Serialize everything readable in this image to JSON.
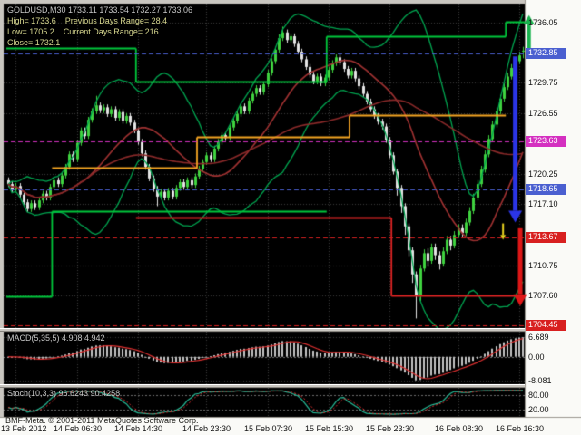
{
  "title": {
    "symbol_ohlc": "GOLDUSD,M30 1733.11 1733.54 1732.27 1733.06"
  },
  "info_lines": {
    "line1": "High= 1733.6    Previous Days Range= 28.4",
    "line2": "Low= 1705.2    Current Days Range= 216",
    "line3": "Close= 1732.1"
  },
  "footer": {
    "copyright": "BMF-Meta. © 2001-2011 MetaQuotes Software Corp."
  },
  "panels": {
    "macd": {
      "label": "MACD(5,35,5) 4.908 4.942",
      "axis": [
        {
          "label": "6.689",
          "value": 6.689
        },
        {
          "label": "0.00",
          "value": 0
        },
        {
          "label": "-8.081",
          "value": -8.081
        }
      ]
    },
    "stoch": {
      "label": "Stoch(10,3,3) 96.6243 90.4258",
      "axis": [
        {
          "label": "80.00",
          "value": 80
        },
        {
          "label": "20.00",
          "value": 20
        }
      ]
    }
  },
  "price_axis": {
    "plain": [
      {
        "label": "1736.05",
        "value": 1736.05
      },
      {
        "label": "1729.75",
        "value": 1729.75
      },
      {
        "label": "1726.55",
        "value": 1726.55
      },
      {
        "label": "1720.25",
        "value": 1720.25
      },
      {
        "label": "1717.10",
        "value": 1717.1
      },
      {
        "label": "1710.75",
        "value": 1710.75
      },
      {
        "label": "1707.60",
        "value": 1707.6
      }
    ],
    "markers": [
      {
        "label": "1732.85",
        "value": 1732.85,
        "color": "#4A5FD0"
      },
      {
        "label": "1723.63",
        "value": 1723.63,
        "color": "#D430C0"
      },
      {
        "label": "1718.65",
        "value": 1718.65,
        "color": "#4A5FD0"
      },
      {
        "label": "1713.67",
        "value": 1713.67,
        "color": "#D82020"
      },
      {
        "label": "1704.45",
        "value": 1704.45,
        "color": "#D82020"
      }
    ]
  },
  "time_axis": {
    "labels": [
      {
        "label": "13 Feb 2012",
        "bar": 2
      },
      {
        "label": "14 Feb 06:30",
        "bar": 18
      },
      {
        "label": "14 Feb 14:30",
        "bar": 34
      },
      {
        "label": "14 Feb 23:30",
        "bar": 52
      },
      {
        "label": "15 Feb 07:30",
        "bar": 68
      },
      {
        "label": "15 Feb 15:30",
        "bar": 84
      },
      {
        "label": "15 Feb 23:30",
        "bar": 100
      },
      {
        "label": "16 Feb 08:30",
        "bar": 118
      },
      {
        "label": "16 Feb 16:30",
        "bar": 134
      }
    ]
  },
  "chart_data": {
    "type": "candlestick",
    "symbol": "GOLDUSD",
    "timeframe": "M30",
    "current_bar": {
      "open": 1733.11,
      "high": 1733.54,
      "low": 1732.27,
      "close": 1733.06
    },
    "session_stats": {
      "high": 1733.6,
      "low": 1705.2,
      "close": 1732.1,
      "previous_days_range": 28.4,
      "current_days_range": 216
    },
    "price_range": [
      1704.2,
      1738.0
    ],
    "candles": [
      [
        1719.6,
        1719.9,
        1718.9,
        1719.2
      ],
      [
        1719.2,
        1719.5,
        1718.3,
        1718.6
      ],
      [
        1718.6,
        1719.3,
        1718.3,
        1719.0
      ],
      [
        1719.0,
        1719.3,
        1717.8,
        1718.1
      ],
      [
        1718.1,
        1718.4,
        1717.0,
        1717.3
      ],
      [
        1717.3,
        1717.6,
        1716.3,
        1716.6
      ],
      [
        1716.6,
        1717.5,
        1716.3,
        1717.2
      ],
      [
        1717.2,
        1717.5,
        1716.5,
        1716.8
      ],
      [
        1716.8,
        1717.8,
        1716.5,
        1717.5
      ],
      [
        1717.5,
        1718.5,
        1717.2,
        1718.2
      ],
      [
        1718.2,
        1718.5,
        1717.5,
        1717.8
      ],
      [
        1717.8,
        1719.2,
        1717.5,
        1718.9
      ],
      [
        1718.9,
        1719.9,
        1718.6,
        1719.6
      ],
      [
        1719.6,
        1719.9,
        1718.9,
        1719.2
      ],
      [
        1719.2,
        1720.4,
        1718.9,
        1720.1
      ],
      [
        1720.1,
        1721.3,
        1719.8,
        1721.0
      ],
      [
        1721.0,
        1722.6,
        1720.7,
        1722.3
      ],
      [
        1722.3,
        1722.6,
        1721.5,
        1721.8
      ],
      [
        1721.8,
        1723.8,
        1721.5,
        1723.5
      ],
      [
        1723.5,
        1725.1,
        1723.2,
        1724.8
      ],
      [
        1724.8,
        1725.1,
        1723.9,
        1724.2
      ],
      [
        1724.2,
        1726.2,
        1723.9,
        1725.9
      ],
      [
        1725.9,
        1727.1,
        1725.6,
        1726.8
      ],
      [
        1726.8,
        1728.4,
        1726.5,
        1727.4
      ],
      [
        1727.4,
        1727.7,
        1726.6,
        1726.9
      ],
      [
        1726.9,
        1727.5,
        1726.6,
        1727.2
      ],
      [
        1727.2,
        1727.5,
        1726.2,
        1726.5
      ],
      [
        1726.5,
        1727.3,
        1726.2,
        1727.0
      ],
      [
        1727.0,
        1727.3,
        1725.8,
        1726.1
      ],
      [
        1726.1,
        1727.0,
        1725.8,
        1726.7
      ],
      [
        1726.7,
        1727.0,
        1725.5,
        1725.8
      ],
      [
        1725.8,
        1726.6,
        1725.5,
        1726.3
      ],
      [
        1726.3,
        1726.6,
        1725.3,
        1725.6
      ],
      [
        1725.6,
        1725.9,
        1724.5,
        1724.8
      ],
      [
        1724.8,
        1725.1,
        1723.3,
        1723.6
      ],
      [
        1723.6,
        1723.9,
        1722.1,
        1722.4
      ],
      [
        1722.4,
        1722.7,
        1720.7,
        1721.0
      ],
      [
        1721.0,
        1721.3,
        1719.5,
        1719.8
      ],
      [
        1719.8,
        1720.1,
        1718.4,
        1718.7
      ],
      [
        1718.7,
        1719.0,
        1716.9,
        1717.9
      ],
      [
        1717.9,
        1718.7,
        1717.6,
        1718.4
      ],
      [
        1718.4,
        1718.7,
        1717.5,
        1717.8
      ],
      [
        1717.8,
        1718.8,
        1717.5,
        1718.5
      ],
      [
        1718.5,
        1718.8,
        1717.6,
        1717.9
      ],
      [
        1717.9,
        1719.1,
        1717.6,
        1718.8
      ],
      [
        1718.8,
        1719.7,
        1718.5,
        1719.4
      ],
      [
        1719.4,
        1719.7,
        1718.6,
        1718.9
      ],
      [
        1718.9,
        1719.9,
        1718.6,
        1719.6
      ],
      [
        1719.6,
        1719.9,
        1718.8,
        1719.1
      ],
      [
        1719.1,
        1720.3,
        1718.8,
        1720.0
      ],
      [
        1720.0,
        1721.1,
        1719.7,
        1720.8
      ],
      [
        1720.8,
        1721.8,
        1720.5,
        1721.5
      ],
      [
        1721.5,
        1722.5,
        1721.2,
        1722.2
      ],
      [
        1722.2,
        1722.5,
        1721.5,
        1721.8
      ],
      [
        1721.8,
        1723.2,
        1721.5,
        1722.9
      ],
      [
        1722.9,
        1723.9,
        1722.6,
        1723.6
      ],
      [
        1723.6,
        1724.6,
        1723.3,
        1724.3
      ],
      [
        1724.3,
        1724.6,
        1723.7,
        1724.0
      ],
      [
        1724.0,
        1725.4,
        1723.7,
        1725.1
      ],
      [
        1725.1,
        1726.1,
        1724.8,
        1725.8
      ],
      [
        1725.8,
        1726.8,
        1725.5,
        1726.5
      ],
      [
        1726.5,
        1727.6,
        1726.2,
        1727.3
      ],
      [
        1727.3,
        1727.6,
        1726.5,
        1726.8
      ],
      [
        1726.8,
        1728.2,
        1726.5,
        1727.9
      ],
      [
        1727.9,
        1728.9,
        1727.6,
        1728.6
      ],
      [
        1728.6,
        1729.5,
        1728.3,
        1729.2
      ],
      [
        1729.2,
        1729.5,
        1728.5,
        1728.8
      ],
      [
        1728.8,
        1729.9,
        1728.5,
        1729.6
      ],
      [
        1729.6,
        1731.1,
        1729.3,
        1730.8
      ],
      [
        1730.8,
        1732.3,
        1730.5,
        1732.0
      ],
      [
        1732.0,
        1733.5,
        1731.7,
        1733.2
      ],
      [
        1733.2,
        1734.8,
        1732.9,
        1734.4
      ],
      [
        1734.4,
        1735.6,
        1734.1,
        1735.0
      ],
      [
        1735.0,
        1735.3,
        1733.9,
        1734.2
      ],
      [
        1734.2,
        1734.9,
        1733.9,
        1734.6
      ],
      [
        1734.6,
        1734.9,
        1733.5,
        1733.8
      ],
      [
        1733.8,
        1734.1,
        1732.7,
        1733.0
      ],
      [
        1733.0,
        1733.3,
        1731.9,
        1732.2
      ],
      [
        1732.2,
        1732.5,
        1731.1,
        1731.4
      ],
      [
        1731.4,
        1731.7,
        1730.3,
        1730.6
      ],
      [
        1730.6,
        1730.9,
        1729.6,
        1729.9
      ],
      [
        1729.9,
        1730.7,
        1729.6,
        1730.4
      ],
      [
        1730.4,
        1730.7,
        1729.4,
        1729.7
      ],
      [
        1729.7,
        1730.6,
        1729.4,
        1730.3
      ],
      [
        1730.3,
        1731.4,
        1730.0,
        1731.1
      ],
      [
        1731.1,
        1732.1,
        1730.8,
        1731.8
      ],
      [
        1731.8,
        1732.7,
        1731.5,
        1732.4
      ],
      [
        1732.4,
        1732.7,
        1731.6,
        1731.9
      ],
      [
        1731.9,
        1732.2,
        1730.9,
        1731.2
      ],
      [
        1731.2,
        1731.5,
        1730.2,
        1730.5
      ],
      [
        1730.5,
        1731.3,
        1730.2,
        1731.0
      ],
      [
        1731.0,
        1731.3,
        1729.9,
        1730.2
      ],
      [
        1730.2,
        1730.5,
        1729.1,
        1729.4
      ],
      [
        1729.4,
        1729.7,
        1728.3,
        1728.6
      ],
      [
        1728.6,
        1728.9,
        1727.5,
        1727.8
      ],
      [
        1727.8,
        1728.1,
        1726.7,
        1727.0
      ],
      [
        1727.0,
        1727.3,
        1726.0,
        1726.3
      ],
      [
        1726.3,
        1726.6,
        1725.4,
        1725.7
      ],
      [
        1725.7,
        1726.0,
        1724.9,
        1725.2
      ],
      [
        1725.2,
        1725.5,
        1723.5,
        1723.8
      ],
      [
        1723.8,
        1724.1,
        1721.9,
        1722.2
      ],
      [
        1722.2,
        1722.5,
        1720.2,
        1720.5
      ],
      [
        1720.5,
        1720.8,
        1718.0,
        1718.8
      ],
      [
        1718.8,
        1719.1,
        1716.2,
        1716.9
      ],
      [
        1716.9,
        1717.2,
        1713.9,
        1714.8
      ],
      [
        1714.8,
        1715.1,
        1711.6,
        1712.3
      ],
      [
        1712.3,
        1712.6,
        1708.9,
        1709.8
      ],
      [
        1709.8,
        1710.1,
        1705.2,
        1707.6
      ],
      [
        1707.6,
        1710.8,
        1707.0,
        1710.4
      ],
      [
        1710.4,
        1712.4,
        1710.1,
        1712.0
      ],
      [
        1712.0,
        1712.5,
        1710.6,
        1711.2
      ],
      [
        1711.2,
        1713.0,
        1710.9,
        1712.6
      ],
      [
        1712.6,
        1713.0,
        1711.3,
        1711.8
      ],
      [
        1711.8,
        1712.2,
        1710.3,
        1710.9
      ],
      [
        1710.9,
        1712.6,
        1710.6,
        1712.2
      ],
      [
        1712.2,
        1713.8,
        1711.9,
        1713.4
      ],
      [
        1713.4,
        1713.8,
        1712.3,
        1712.8
      ],
      [
        1712.8,
        1714.3,
        1712.5,
        1713.9
      ],
      [
        1713.9,
        1715.0,
        1713.6,
        1714.6
      ],
      [
        1714.6,
        1715.0,
        1713.7,
        1714.1
      ],
      [
        1714.1,
        1715.6,
        1713.8,
        1715.2
      ],
      [
        1715.2,
        1716.8,
        1714.9,
        1716.4
      ],
      [
        1716.4,
        1718.2,
        1716.1,
        1717.8
      ],
      [
        1717.8,
        1719.6,
        1717.5,
        1719.2
      ],
      [
        1719.2,
        1721.1,
        1718.9,
        1720.7
      ],
      [
        1720.7,
        1722.7,
        1720.4,
        1722.3
      ],
      [
        1722.3,
        1724.3,
        1722.0,
        1723.9
      ],
      [
        1723.9,
        1725.8,
        1723.6,
        1725.4
      ],
      [
        1725.4,
        1727.2,
        1725.1,
        1726.8
      ],
      [
        1726.8,
        1728.5,
        1726.5,
        1728.1
      ],
      [
        1728.1,
        1729.7,
        1727.8,
        1729.3
      ],
      [
        1729.3,
        1730.8,
        1729.0,
        1730.4
      ],
      [
        1730.4,
        1731.7,
        1730.1,
        1731.3
      ],
      [
        1731.3,
        1732.4,
        1731.0,
        1732.0
      ],
      [
        1732.0,
        1733.0,
        1731.7,
        1732.6
      ],
      [
        1733.1,
        1733.5,
        1732.3,
        1733.1
      ]
    ],
    "overlays": {
      "bollinger": {
        "period": 20,
        "deviation": 2,
        "color": "#00A550"
      },
      "moving_averages": [
        {
          "period": 21,
          "color": "#A13232"
        },
        {
          "period": 55,
          "color": "#8B2A2A"
        }
      ],
      "step_lines": [
        {
          "name": "upper-green-level",
          "color": "#00C83C",
          "segments": [
            [
              0,
              34,
              1733.4
            ],
            [
              34,
              84,
              1729.9
            ],
            [
              84,
              131,
              1734.6
            ],
            [
              131,
              136,
              1736.1
            ]
          ]
        },
        {
          "name": "lower-green-level",
          "color": "#00C83C",
          "segments": [
            [
              0,
              12,
              1707.5
            ],
            [
              12,
              84,
              1716.4
            ]
          ]
        },
        {
          "name": "orange-pivot-level",
          "color": "#F5A623",
          "segments": [
            [
              12,
              50,
              1720.9
            ],
            [
              50,
              90,
              1724.1
            ],
            [
              90,
              131,
              1726.4
            ]
          ]
        },
        {
          "name": "red-support-level",
          "color": "#E02424",
          "segments": [
            [
              34,
              101,
              1715.7
            ],
            [
              101,
              136,
              1707.6
            ]
          ]
        }
      ]
    },
    "arrows": [
      {
        "dir": "down",
        "color": "#2B35E6",
        "bar": 133,
        "from": 1732.5,
        "to": 1715.2,
        "w": 5
      },
      {
        "dir": "down",
        "color": "#DE1717",
        "bar": 134.3,
        "from": 1714.6,
        "to": 1706.5,
        "w": 5
      },
      {
        "dir": "up",
        "color": "#17B24D",
        "bar": 136.6,
        "from": 1732.9,
        "to": 1736.8,
        "w": 4
      },
      {
        "dir": "down",
        "color": "#E8D11F",
        "bar": 129.8,
        "from": 1715.1,
        "to": 1713.4,
        "w": 2
      }
    ],
    "indicators": [
      {
        "name": "MACD",
        "params": [
          5,
          35,
          5
        ],
        "values": [
          4.908,
          4.942
        ],
        "histogram_color": "#C4C4C4",
        "signal_color": "#E03030",
        "range": [
          -8.081,
          6.689
        ]
      },
      {
        "name": "Stochastic",
        "params": [
          10,
          3,
          3
        ],
        "values": [
          96.6243,
          90.4258
        ],
        "main_color": "#27BF9B",
        "signal_color": "#E03030",
        "levels": [
          80,
          20
        ]
      }
    ]
  }
}
